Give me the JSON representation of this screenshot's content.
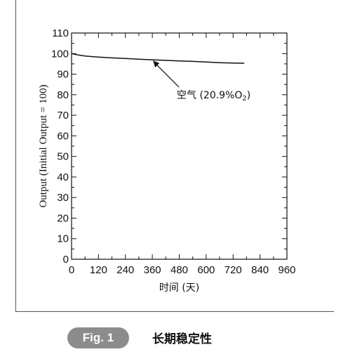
{
  "figure": {
    "badge": "Fig. 1",
    "caption": "长期稳定性"
  },
  "chart_data": {
    "type": "line",
    "xlabel": "时间 (天)",
    "ylabel": "Output (Initial Output = 100)",
    "xlim": [
      0,
      960
    ],
    "ylim": [
      0,
      110
    ],
    "x_ticks": [
      "0",
      "120",
      "240",
      "360",
      "480",
      "600",
      "720",
      "840",
      "960"
    ],
    "y_ticks": [
      "0",
      "10",
      "20",
      "30",
      "40",
      "50",
      "60",
      "70",
      "80",
      "90",
      "100",
      "110"
    ],
    "grid": false,
    "series": [
      {
        "name": "空气 (20.9%O2)",
        "x": [
          0,
          30,
          60,
          120,
          180,
          240,
          300,
          360,
          420,
          480,
          540,
          600,
          660,
          720,
          770
        ],
        "y": [
          100,
          99.3,
          98.8,
          98.3,
          97.9,
          97.6,
          97.3,
          97.0,
          96.7,
          96.4,
          96.2,
          95.9,
          95.6,
          95.4,
          95.3
        ]
      }
    ],
    "annotation": {
      "text_main": "空气 (20.9%O",
      "text_sub": "2",
      "text_end": ")",
      "target_x": 360,
      "target_y": 97.0
    },
    "colors": {
      "line": "#111111",
      "axis": "#111111"
    }
  }
}
